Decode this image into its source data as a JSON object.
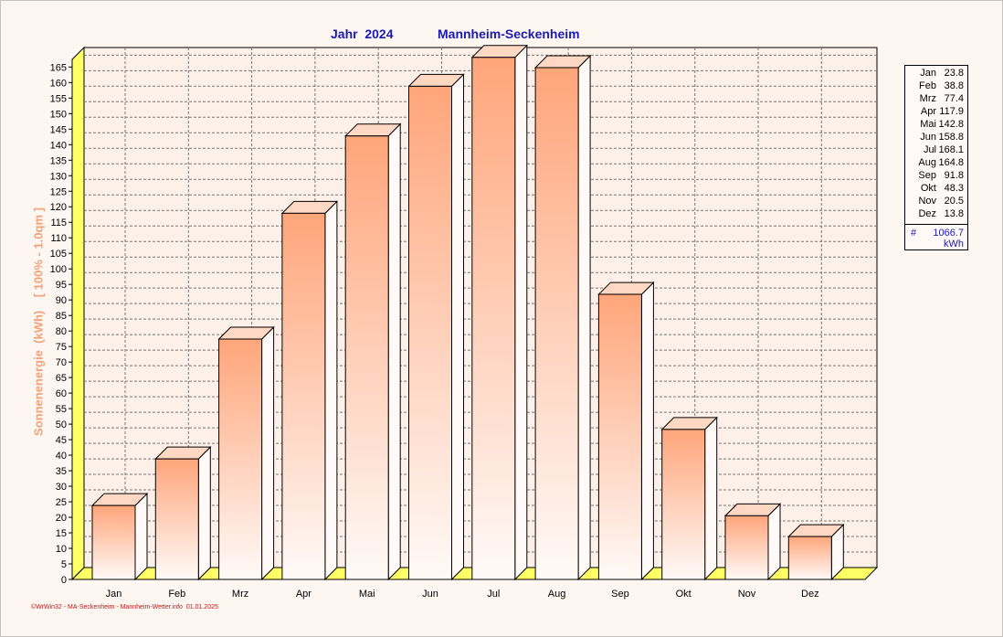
{
  "header": {
    "title_year": "Jahr  2024",
    "title_location": "Mannheim-Seckenheim"
  },
  "chart_data": {
    "type": "bar",
    "title": "Jahr  2024    Mannheim-Seckenheim",
    "ylabel": "Sonnenenergie  (kWh)    [ 100% - 1.0qm ]",
    "xlabel": "",
    "categories": [
      "Jan",
      "Feb",
      "Mrz",
      "Apr",
      "Mai",
      "Jun",
      "Jul",
      "Aug",
      "Sep",
      "Okt",
      "Nov",
      "Dez"
    ],
    "values": [
      23.8,
      38.8,
      77.4,
      117.9,
      142.8,
      158.8,
      168.1,
      164.8,
      91.8,
      48.3,
      20.5,
      13.8
    ],
    "ylim": [
      0,
      165
    ],
    "ytick_step": 5,
    "grid": true,
    "bar_style": "3d",
    "legend_position": "right"
  },
  "legend": {
    "entries": [
      {
        "month": "Jan",
        "value": "23.8"
      },
      {
        "month": "Feb",
        "value": "38.8"
      },
      {
        "month": "Mrz",
        "value": "77.4"
      },
      {
        "month": "Apr",
        "value": "117.9"
      },
      {
        "month": "Mai",
        "value": "142.8"
      },
      {
        "month": "Jun",
        "value": "158.8"
      },
      {
        "month": "Jul",
        "value": "168.1"
      },
      {
        "month": "Aug",
        "value": "164.8"
      },
      {
        "month": "Sep",
        "value": "91.8"
      },
      {
        "month": "Okt",
        "value": "48.3"
      },
      {
        "month": "Nov",
        "value": "20.5"
      },
      {
        "month": "Dez",
        "value": "13.8"
      }
    ],
    "total_symbol": "#",
    "total_value": "1066.7",
    "total_unit": "kWh"
  },
  "footer": {
    "text": "©WrWin32 - MA-Seckenheim - Mannheim-Wetter.info  01.01.2025"
  },
  "colors": {
    "background": "#fdf6f1",
    "plot_background": "#fdf0e8",
    "bar_top": "#ffa57a",
    "bar_bottom": "#fffaf8",
    "floor": "#ffff66",
    "title": "#1a1ab4",
    "ylabel": "#f2a27a",
    "footer": "#c01818"
  }
}
